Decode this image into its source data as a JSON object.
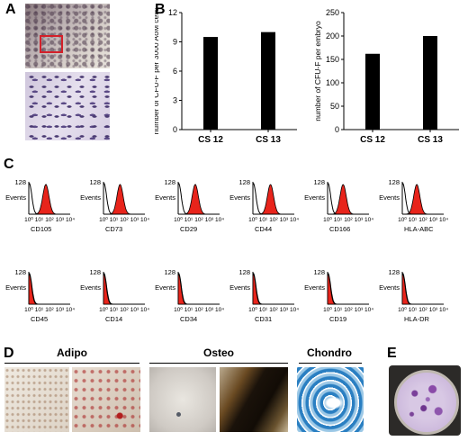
{
  "panels": {
    "a": "A",
    "b": "B",
    "c": "C",
    "d": "D",
    "e": "E"
  },
  "chart_data": [
    {
      "type": "bar",
      "categories": [
        "CS 12",
        "CS 13"
      ],
      "values": [
        9.5,
        10.0
      ],
      "ylabel": "number of CFU-F per 3000 AoM cells",
      "ylim": [
        0,
        12
      ],
      "yticks": [
        "0",
        "3",
        "6",
        "9",
        "12"
      ],
      "bar_color": "#000000"
    },
    {
      "type": "bar",
      "categories": [
        "CS 12",
        "CS 13"
      ],
      "values": [
        162,
        200
      ],
      "ylabel": "number of CFU-F per embryo",
      "ylim": [
        0,
        250
      ],
      "yticks": [
        "0",
        "50",
        "100",
        "150",
        "200",
        "250"
      ],
      "bar_color": "#000000"
    }
  ],
  "flow": {
    "ylabel": "Events",
    "ymax_label": "128",
    "xticks": [
      "10⁰",
      "10¹",
      "10²",
      "10³",
      "10⁴"
    ],
    "fill_color": "#e8241b",
    "markers": [
      {
        "name": "CD105",
        "level": 1.65
      },
      {
        "name": "CD73",
        "level": 1.6
      },
      {
        "name": "CD29",
        "level": 1.65
      },
      {
        "name": "CD44",
        "level": 1.7
      },
      {
        "name": "CD166",
        "level": 1.5
      },
      {
        "name": "HLA-ABC",
        "level": 1.4
      },
      {
        "name": "CD45",
        "level": 0.05
      },
      {
        "name": "CD14",
        "level": 0.05
      },
      {
        "name": "CD34",
        "level": 0.05
      },
      {
        "name": "CD31",
        "level": 0.05
      },
      {
        "name": "CD19",
        "level": 0.05
      },
      {
        "name": "HLA-DR",
        "level": 0.05
      }
    ]
  },
  "differentiation": {
    "adipo": "Adipo",
    "osteo": "Osteo",
    "chondro": "Chondro"
  }
}
